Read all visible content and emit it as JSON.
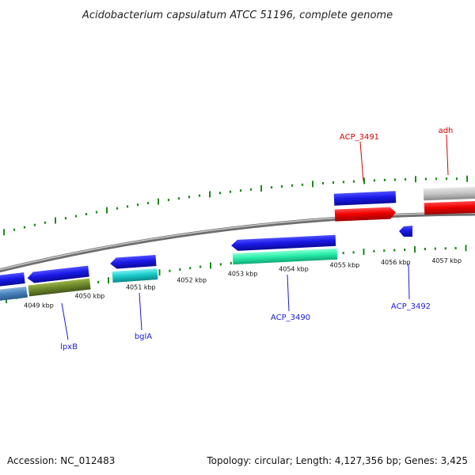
{
  "title": "Acidobacterium capsulatum ATCC 51196, complete genome",
  "footer": {
    "accession": "Accession: NC_012483",
    "summary": "Topology: circular; Length: 4,127,356 bp; Genes: 3,425"
  },
  "colors": {
    "tick": "#1e8a1e",
    "backbone": "#8a8a8a",
    "forward_label": "#d40000",
    "reverse_label": "#1a1adc"
  },
  "scale": {
    "labels": [
      "4049 kbp",
      "4050 kbp",
      "4051 kbp",
      "4052 kbp",
      "4053 kbp",
      "4054 kbp",
      "4055 kbp",
      "4056 kbp",
      "4057 kbp"
    ]
  },
  "gene_labels": {
    "acp_3491": "ACP_3491",
    "adh": "adh",
    "lpxb": "lpxB",
    "bgla": "bglA",
    "acp_3490": "ACP_3490",
    "acp_3492": "ACP_3492"
  }
}
